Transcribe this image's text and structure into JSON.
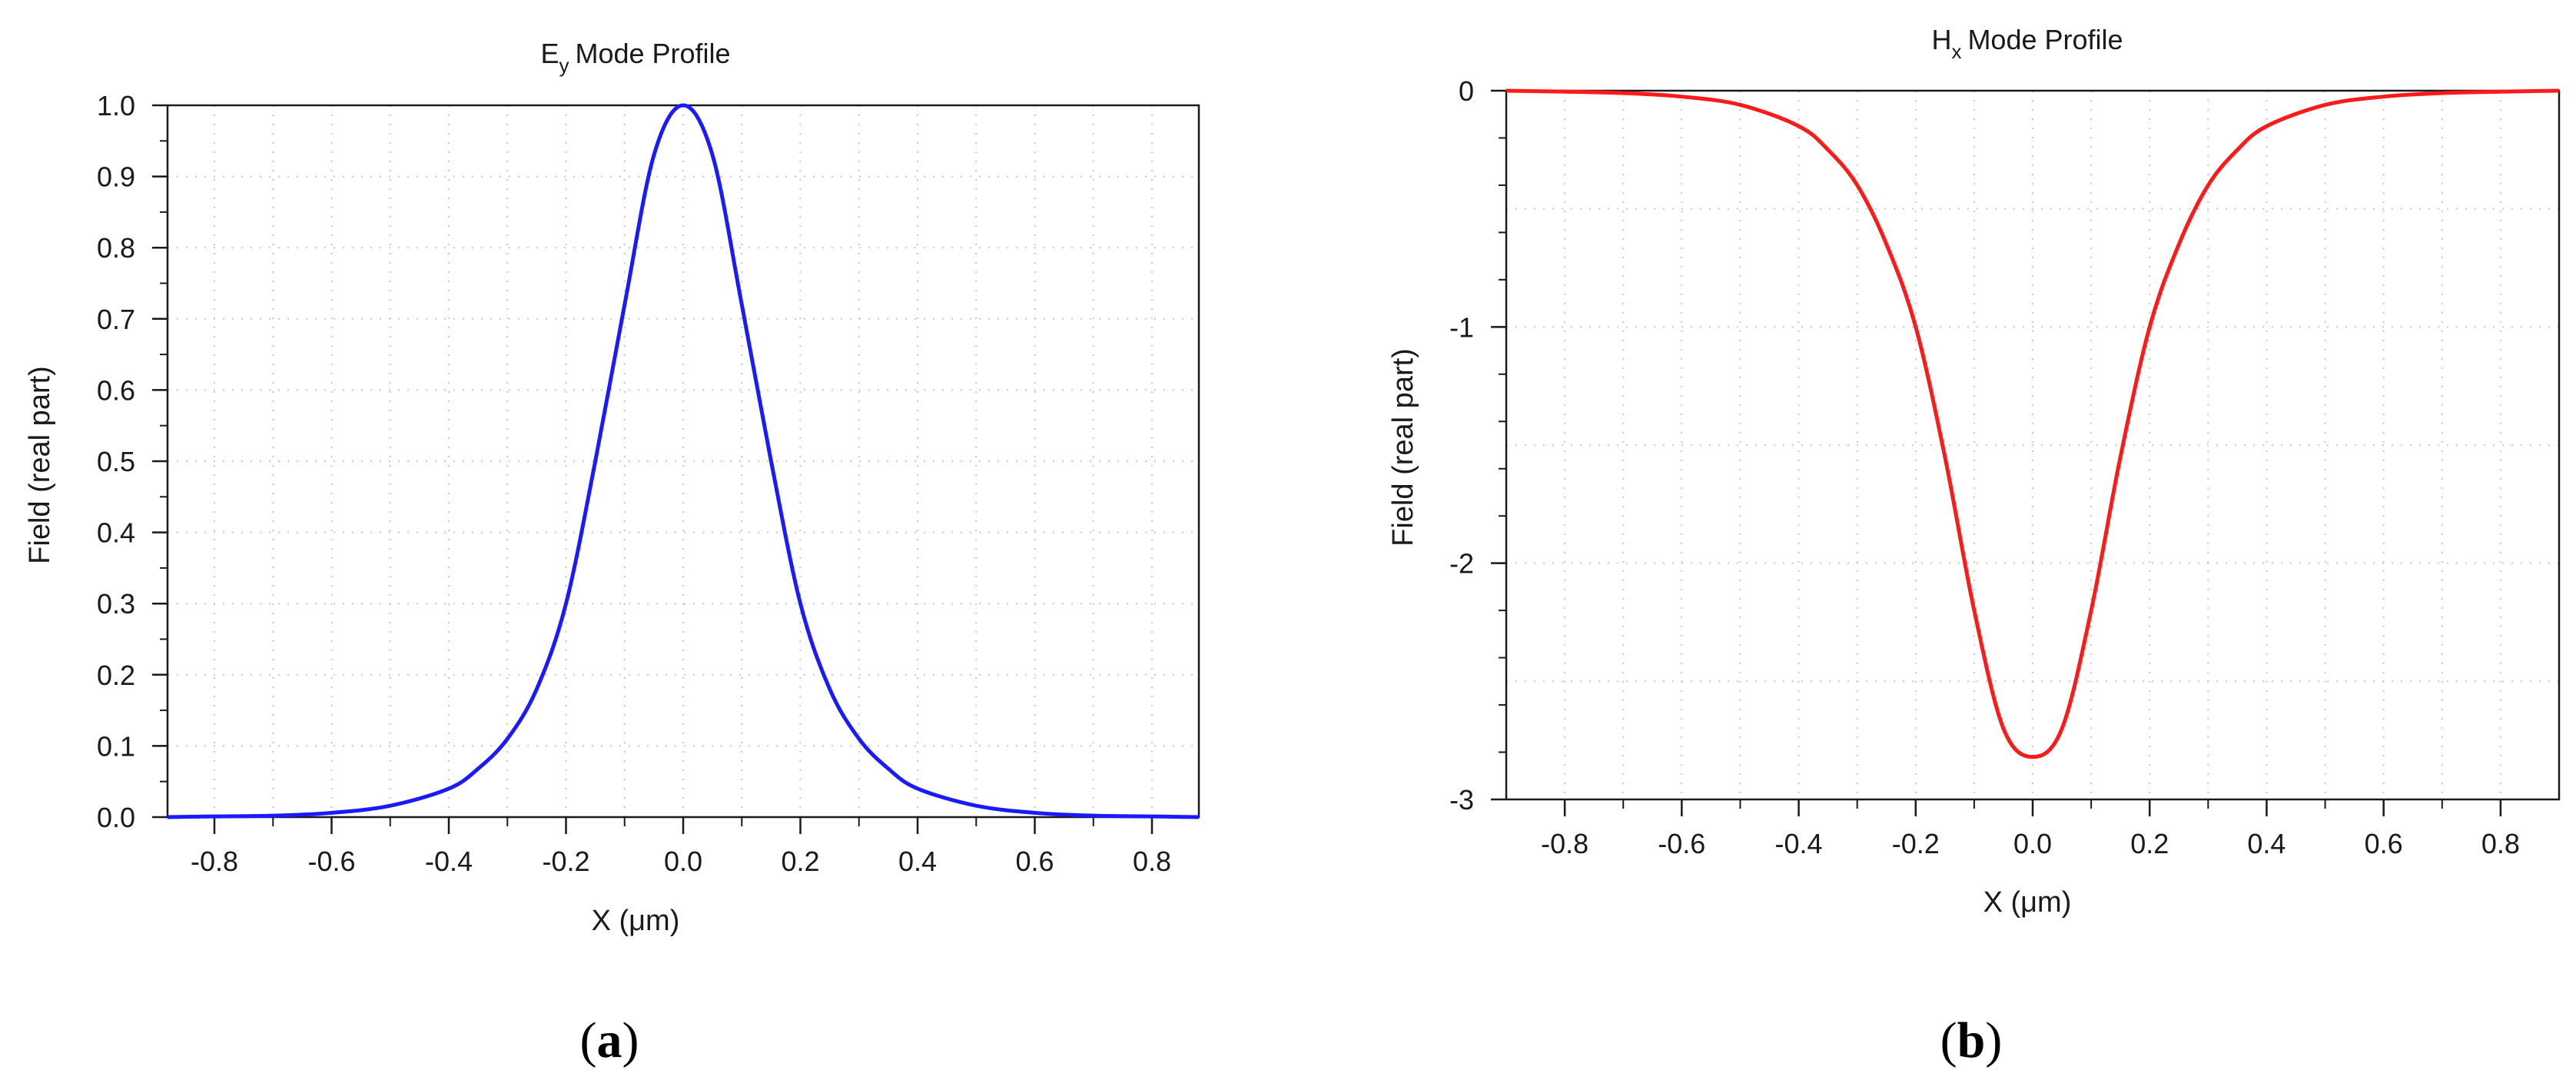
{
  "chart_data": [
    {
      "type": "line",
      "title": "Mode Profile",
      "title_symbol": "E",
      "title_subscript": "y",
      "xlabel": "X (μm)",
      "ylabel": "Field (real part)",
      "xlim": [
        -0.88,
        0.88
      ],
      "ylim": [
        0.0,
        1.0
      ],
      "x_ticks": [
        -0.8,
        -0.6,
        -0.4,
        -0.2,
        0.0,
        0.2,
        0.4,
        0.6,
        0.8
      ],
      "x_tick_labels": [
        "-0.8",
        "-0.6",
        "-0.4",
        "-0.2",
        "0.0",
        "0.2",
        "0.4",
        "0.6",
        "0.8"
      ],
      "y_ticks": [
        0.0,
        0.1,
        0.2,
        0.3,
        0.4,
        0.5,
        0.6,
        0.7,
        0.8,
        0.9,
        1.0
      ],
      "y_tick_labels": [
        "0.0",
        "0.1",
        "0.2",
        "0.3",
        "0.4",
        "0.5",
        "0.6",
        "0.7",
        "0.8",
        "0.9",
        "1.0"
      ],
      "grid": true,
      "color": "#1a1aff",
      "series": [
        {
          "x": [
            -0.88,
            -0.8,
            -0.7,
            -0.6,
            -0.5,
            -0.4,
            -0.35,
            -0.3,
            -0.25,
            -0.2,
            -0.15,
            -0.1,
            -0.05,
            0.0,
            0.05,
            0.1,
            0.15,
            0.2,
            0.25,
            0.3,
            0.35,
            0.4,
            0.5,
            0.6,
            0.7,
            0.8,
            0.88
          ],
          "y": [
            0.0,
            0.001,
            0.002,
            0.006,
            0.016,
            0.04,
            0.068,
            0.11,
            0.18,
            0.3,
            0.5,
            0.72,
            0.93,
            1.0,
            0.93,
            0.72,
            0.5,
            0.3,
            0.18,
            0.11,
            0.068,
            0.04,
            0.016,
            0.006,
            0.002,
            0.001,
            0.0
          ]
        }
      ]
    },
    {
      "type": "line",
      "title": "Mode Profile",
      "title_symbol": "H",
      "title_subscript": "x",
      "xlabel": "X (μm)",
      "ylabel": "Field (real part)",
      "xlim": [
        -0.9,
        0.9
      ],
      "ylim": [
        -3.0,
        0.0
      ],
      "x_ticks": [
        -0.8,
        -0.6,
        -0.4,
        -0.2,
        0.0,
        0.2,
        0.4,
        0.6,
        0.8
      ],
      "x_tick_labels": [
        "-0.8",
        "-0.6",
        "-0.4",
        "-0.2",
        "0.0",
        "0.2",
        "0.4",
        "0.6",
        "0.8"
      ],
      "y_ticks": [
        -3,
        -2,
        -1,
        0
      ],
      "y_tick_labels": [
        "-3",
        "-2",
        "-1",
        "0"
      ],
      "grid": true,
      "color": "#ff1a1a",
      "series": [
        {
          "x": [
            -0.9,
            -0.8,
            -0.7,
            -0.6,
            -0.5,
            -0.4,
            -0.35,
            -0.3,
            -0.25,
            -0.2,
            -0.15,
            -0.1,
            -0.05,
            0.0,
            0.05,
            0.1,
            0.15,
            0.2,
            0.25,
            0.3,
            0.35,
            0.4,
            0.5,
            0.6,
            0.7,
            0.8,
            0.9
          ],
          "y": [
            0.0,
            -0.004,
            -0.01,
            -0.025,
            -0.06,
            -0.15,
            -0.25,
            -0.4,
            -0.65,
            -1.0,
            -1.55,
            -2.2,
            -2.7,
            -2.82,
            -2.7,
            -2.2,
            -1.55,
            -1.0,
            -0.65,
            -0.4,
            -0.25,
            -0.15,
            -0.06,
            -0.025,
            -0.01,
            -0.004,
            0.0
          ]
        }
      ]
    }
  ],
  "captions": [
    "a",
    "b"
  ]
}
